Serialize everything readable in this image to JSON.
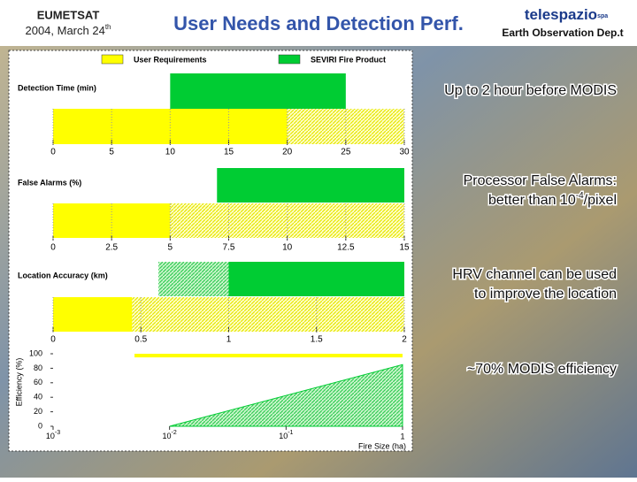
{
  "header": {
    "org": "EUMETSAT",
    "date": "2004, March 24",
    "date_suffix": "th",
    "title": "User Needs and Detection Perf.",
    "logo": "telespazio",
    "logo_suffix": "spa",
    "department": "Earth Observation Dep.t"
  },
  "legend": [
    {
      "name": "User Requirements",
      "color": "#ffff00"
    },
    {
      "name": "SEVIRI Fire Product",
      "color": "#00cc33"
    }
  ],
  "notes": [
    {
      "lines": [
        {
          "text": "Up to 2 hour before MODIS"
        }
      ]
    },
    {
      "lines": [
        {
          "text": "Processor False Alarms:"
        },
        {
          "text": "better than 10",
          "sup": "-4",
          "tail": "/pixel"
        }
      ]
    },
    {
      "lines": [
        {
          "text": "HRV channel can be used"
        },
        {
          "text": "to improve the location"
        }
      ]
    },
    {
      "lines": [
        {
          "text": "~70% MODIS efficiency"
        }
      ]
    }
  ],
  "chart_data": [
    {
      "type": "range_bar",
      "title": "Detection Time (min)",
      "xlim": [
        0,
        30
      ],
      "xticks": [
        0,
        5,
        10,
        15,
        20,
        25,
        30
      ],
      "series": [
        {
          "row": 0,
          "color": "#00cc33",
          "pattern": "solid",
          "values": [
            10,
            25
          ]
        },
        {
          "row": 1,
          "color": "#ffff00",
          "pattern": "solid",
          "values": [
            0,
            20
          ]
        },
        {
          "row": 1,
          "color": "#ffff00",
          "pattern": "hatched",
          "values": [
            20,
            30
          ]
        }
      ]
    },
    {
      "type": "range_bar",
      "title": "False Alarms (%)",
      "xlim": [
        0,
        15
      ],
      "xticks": [
        0,
        2.5,
        5,
        7.5,
        10,
        12.5,
        15
      ],
      "series": [
        {
          "row": 0,
          "color": "#00cc33",
          "pattern": "solid",
          "values": [
            7,
            15
          ]
        },
        {
          "row": 1,
          "color": "#ffff00",
          "pattern": "solid",
          "values": [
            0,
            5
          ]
        },
        {
          "row": 1,
          "color": "#ffff00",
          "pattern": "hatched",
          "values": [
            5,
            15
          ]
        }
      ]
    },
    {
      "type": "range_bar",
      "title": "Location Accuracy (km)",
      "xlim": [
        0,
        2
      ],
      "xticks": [
        0,
        0.5,
        1,
        1.5,
        2
      ],
      "series": [
        {
          "row": 0,
          "color": "#00cc33",
          "pattern": "hatched",
          "values": [
            0.6,
            1
          ]
        },
        {
          "row": 0,
          "color": "#00cc33",
          "pattern": "solid",
          "values": [
            1,
            2
          ]
        },
        {
          "row": 1,
          "color": "#ffff00",
          "pattern": "solid",
          "values": [
            0,
            0.45
          ]
        },
        {
          "row": 1,
          "color": "#ffff00",
          "pattern": "hatched",
          "values": [
            0.45,
            2
          ]
        }
      ]
    },
    {
      "type": "area",
      "ylabel": "Efficiency (%)",
      "xlabel": "Fire Size (ha)",
      "xscale": "log",
      "xlim": [
        0.001,
        1
      ],
      "xticks": [
        {
          "value": 0.001,
          "label": "10",
          "exponent": "-3"
        },
        {
          "value": 0.01,
          "label": "10",
          "exponent": "-2"
        },
        {
          "value": 0.1,
          "label": "10",
          "exponent": "-1"
        },
        1
      ],
      "ylim": [
        0,
        100
      ],
      "yticks": [
        0,
        20,
        40,
        60,
        80,
        100
      ],
      "band": {
        "color": "#ffff00",
        "x": [
          0.005,
          1
        ],
        "y": [
          95,
          100
        ]
      },
      "series": [
        {
          "color": "#00cc33",
          "x": [
            0.01,
            1
          ],
          "values": [
            0,
            85
          ]
        }
      ]
    }
  ]
}
